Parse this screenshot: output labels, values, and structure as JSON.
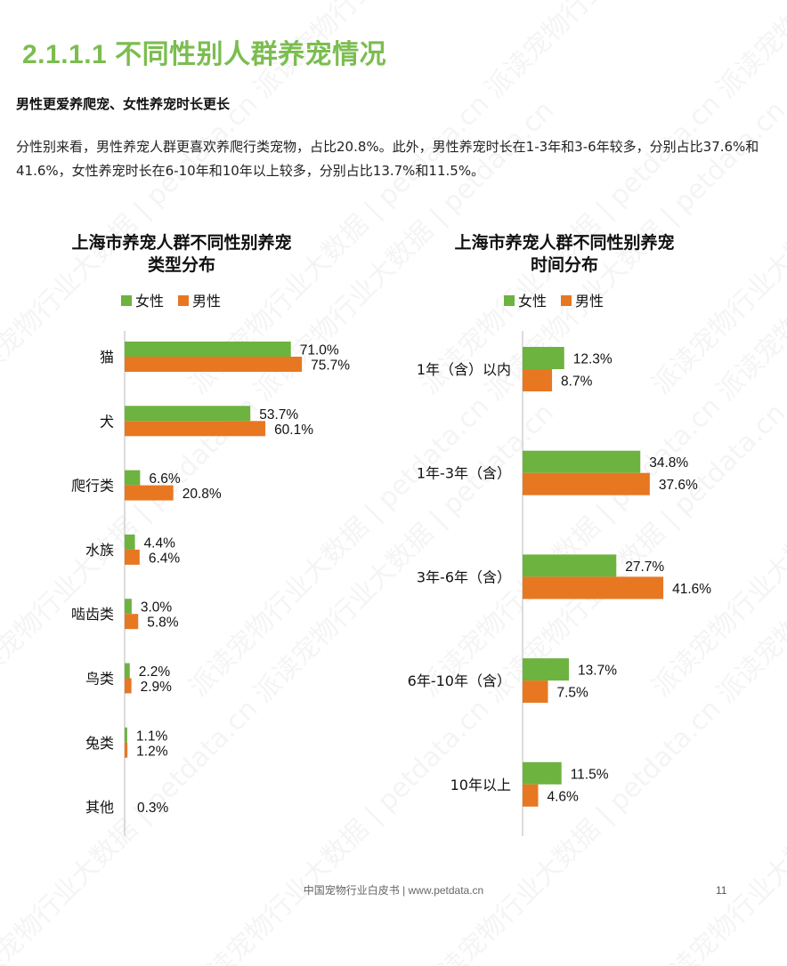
{
  "section_title": "2.1.1.1 不同性别人群养宠情况",
  "subheading": "男性更爱养爬宠、女性养宠时长更长",
  "paragraph": "分性别来看，男性养宠人群更喜欢养爬行类宠物，占比20.8%。此外，男性养宠时长在1-3年和3-6年较多，分别占比37.6%和41.6%，女性养宠时长在6-10年和10年以上较多，分别占比13.7%和11.5%。",
  "watermark": "派读宠物行业大数据 | petdata.cn",
  "colors": {
    "female": "#6db33f",
    "male": "#e87722",
    "axis": "#d0d0d0",
    "title_green": "#7bbd4f"
  },
  "footer": {
    "text": "中国宠物行业白皮书 | www.petdata.cn",
    "page": "11"
  },
  "chart_data": [
    {
      "type": "bar",
      "orientation": "horizontal",
      "title_lines": [
        "上海市养宠人群不同性别养宠",
        "类型分布"
      ],
      "legend": [
        "女性",
        "男性"
      ],
      "legend_placement": "top",
      "categories": [
        "猫",
        "犬",
        "爬行类",
        "水族",
        "啮齿类",
        "鸟类",
        "兔类",
        "其他"
      ],
      "series": [
        {
          "name": "女性",
          "color": "#6db33f",
          "values": [
            71.0,
            53.7,
            6.6,
            4.4,
            3.0,
            2.2,
            1.1,
            null
          ]
        },
        {
          "name": "男性",
          "color": "#e87722",
          "values": [
            75.7,
            60.1,
            20.8,
            6.4,
            5.8,
            2.9,
            1.2,
            null
          ]
        }
      ],
      "labels": [
        [
          "71.0%",
          "75.7%"
        ],
        [
          "53.7%",
          "60.1%"
        ],
        [
          "6.6%",
          "20.8%"
        ],
        [
          "4.4%",
          "6.4%"
        ],
        [
          "3.0%",
          "5.8%"
        ],
        [
          "2.2%",
          "2.9%"
        ],
        [
          "1.1%",
          "1.2%"
        ],
        [
          "0.3%"
        ]
      ],
      "xlim": [
        0,
        100
      ],
      "grid": false
    },
    {
      "type": "bar",
      "orientation": "horizontal",
      "title_lines": [
        "上海市养宠人群不同性别养宠",
        "时间分布"
      ],
      "legend": [
        "女性",
        "男性"
      ],
      "legend_placement": "top",
      "categories": [
        "1年（含）以内",
        "1年-3年（含）",
        "3年-6年（含）",
        "6年-10年（含）",
        "10年以上"
      ],
      "series": [
        {
          "name": "女性",
          "color": "#6db33f",
          "values": [
            12.3,
            34.8,
            27.7,
            13.7,
            11.5
          ]
        },
        {
          "name": "男性",
          "color": "#e87722",
          "values": [
            8.7,
            37.6,
            41.6,
            7.5,
            4.6
          ]
        }
      ],
      "labels": [
        [
          "12.3%",
          "8.7%"
        ],
        [
          "34.8%",
          "37.6%"
        ],
        [
          "27.7%",
          "41.6%"
        ],
        [
          "13.7%",
          "7.5%"
        ],
        [
          "11.5%",
          "4.6%"
        ]
      ],
      "xlim": [
        0,
        50
      ],
      "grid": false
    }
  ]
}
